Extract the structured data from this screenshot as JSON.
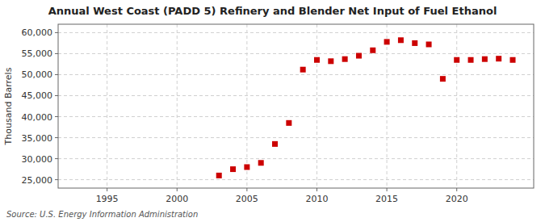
{
  "chart_data": {
    "type": "scatter",
    "title": "Annual West Coast (PADD 5) Refinery and Blender Net Input of Fuel Ethanol",
    "ylabel": "Thousand Barrels",
    "source": "Source: U.S. Energy Information Administration",
    "x": [
      2003,
      2004,
      2005,
      2006,
      2007,
      2008,
      2009,
      2010,
      2011,
      2012,
      2013,
      2014,
      2015,
      2016,
      2017,
      2018,
      2019,
      2020,
      2021,
      2022,
      2023,
      2024
    ],
    "values": [
      26000,
      27500,
      28000,
      29000,
      33500,
      38500,
      51200,
      53500,
      53200,
      53700,
      54500,
      55800,
      57800,
      58200,
      57500,
      57200,
      49000,
      53500,
      53500,
      53700,
      53800,
      53500
    ],
    "color": "#cc0000",
    "marker": "square",
    "xlim": [
      1991.5,
      2025.5
    ],
    "xticks": [
      1995,
      2000,
      2005,
      2010,
      2015,
      2020
    ],
    "ylim": [
      23000,
      62000
    ],
    "yticks": [
      {
        "value": 25000,
        "label": "25,000"
      },
      {
        "value": 30000,
        "label": "30,000"
      },
      {
        "value": 35000,
        "label": "35,000"
      },
      {
        "value": 40000,
        "label": "40,000"
      },
      {
        "value": 45000,
        "label": "45,000"
      },
      {
        "value": 50000,
        "label": "50,000"
      },
      {
        "value": 55000,
        "label": "55,000"
      },
      {
        "value": 60000,
        "label": "60,000"
      }
    ],
    "grid": true
  }
}
